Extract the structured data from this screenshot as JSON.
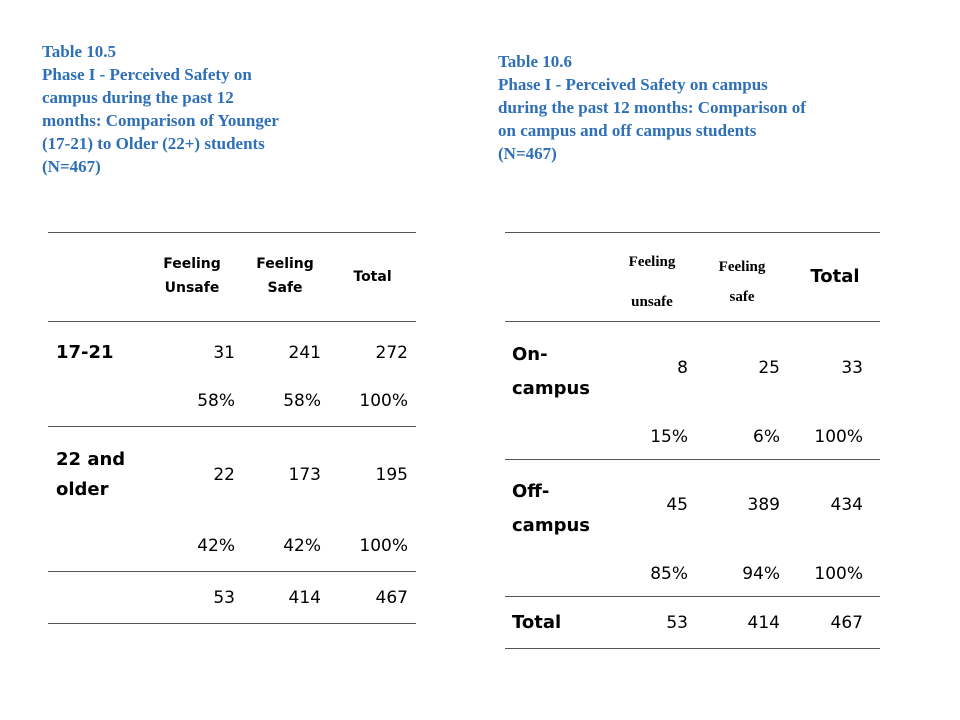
{
  "table_left": {
    "caption_lines": [
      "Table 10.5",
      "Phase I - Perceived Safety on",
      "campus during the past 12",
      "months: Comparison of Younger",
      "(17-21) to Older (22+) students",
      "(N=467)"
    ],
    "headers": {
      "feeling_unsafe_1": "Feeling",
      "feeling_unsafe_2": "Unsafe",
      "feeling_safe_1": "Feeling",
      "feeling_safe_2": "Safe",
      "total": "Total"
    },
    "rows": {
      "r1_label": "17-21",
      "r1_counts": [
        "31",
        "241",
        "272"
      ],
      "r1_pcts": [
        "58%",
        "58%",
        "100%"
      ],
      "r2_label_1": "22 and",
      "r2_label_2": "older",
      "r2_counts": [
        "22",
        "173",
        "195"
      ],
      "r2_pcts": [
        "42%",
        "42%",
        "100%"
      ],
      "total_counts": [
        "53",
        "414",
        "467"
      ]
    }
  },
  "table_right": {
    "caption_lines": [
      "Table 10.6",
      "Phase I - Perceived Safety on campus",
      "during the past 12 months: Comparison of",
      "on campus and off campus students",
      "(N=467)"
    ],
    "headers": {
      "feeling_unsafe_1": "Feeling",
      "feeling_unsafe_2": "unsafe",
      "feeling_safe_1": "Feeling",
      "feeling_safe_2": "safe",
      "total": "Total"
    },
    "rows": {
      "r1_label_1": "On-",
      "r1_label_2": "campus",
      "r1_counts": [
        "8",
        "25",
        "33"
      ],
      "r1_pcts": [
        "15%",
        "6%",
        "100%"
      ],
      "r2_label_1": "Off-",
      "r2_label_2": "campus",
      "r2_counts": [
        "45",
        "389",
        "434"
      ],
      "r2_pcts": [
        "85%",
        "94%",
        "100%"
      ],
      "total_label": "Total",
      "total_counts": [
        "53",
        "414",
        "467"
      ]
    }
  }
}
